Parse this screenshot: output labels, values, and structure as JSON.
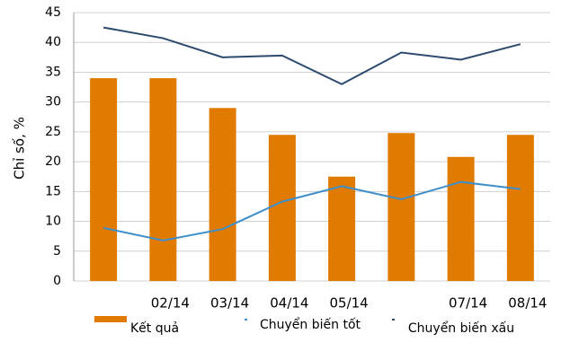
{
  "chart_data": {
    "type": "bar_line",
    "y_label": "Chỉ số, %",
    "categories": [
      null,
      "02/14",
      "03/14",
      "04/14",
      "05/14",
      null,
      "07/14",
      "08/14"
    ],
    "series": [
      {
        "name": "Kết quả",
        "type": "bar",
        "color": "#e07b00",
        "values": [
          34,
          34,
          29,
          24.5,
          17.5,
          24.8,
          20.8,
          24.5
        ]
      },
      {
        "name": "Chuyển biến tốt",
        "type": "line",
        "color": "#3e8ec9",
        "values": [
          8.9,
          6.8,
          8.7,
          13.3,
          15.9,
          13.7,
          16.6,
          15.4
        ]
      },
      {
        "name": "Chuyển biến xấu",
        "type": "line",
        "color": "#2c4a6e",
        "values": [
          42.5,
          40.7,
          37.5,
          37.8,
          33,
          38.3,
          37.1,
          39.7
        ]
      }
    ],
    "ylim": [
      0,
      45
    ],
    "yticks": [
      0,
      5,
      10,
      15,
      20,
      25,
      30,
      35,
      40,
      45
    ],
    "grid": true
  }
}
